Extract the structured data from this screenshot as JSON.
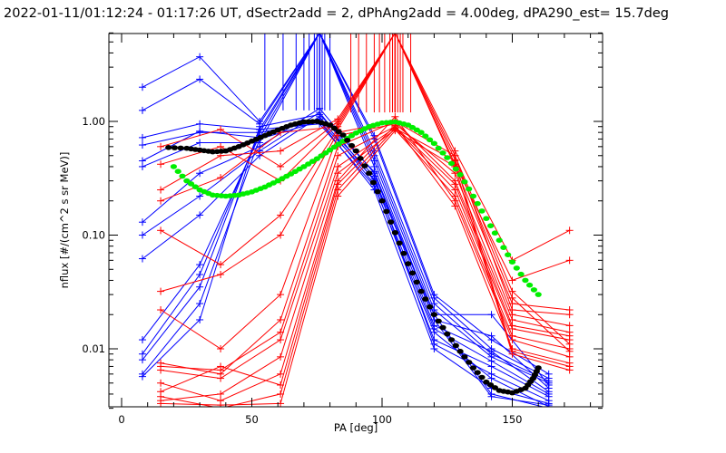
{
  "chart_data": {
    "type": "line",
    "title": "2022-01-11/01:12:24 - 01:17:26 UT, dSectr2add = 2, dPhAng2add = 4.00deg, dPA290_est=  15.7deg",
    "xlabel": "PA [deg]",
    "ylabel": "nflux [#/(cm^2 s sr MeV)]",
    "xlim": [
      -5,
      185
    ],
    "ylim": [
      0.003,
      6
    ],
    "yscale": "log",
    "x_ticks": [
      0,
      50,
      100,
      150
    ],
    "x_tick_labels": [
      "0",
      "50",
      "100",
      "150"
    ],
    "y_ticks": [
      0.01,
      0.1,
      1.0
    ],
    "y_tick_labels": [
      "0.01",
      "0.10",
      "1.00"
    ],
    "colors": {
      "blue": "#0000ff",
      "red": "#ff0000",
      "black": "#000000",
      "green": "#00ee00"
    },
    "blue_x": [
      8,
      30,
      53,
      76,
      97,
      120,
      142,
      164
    ],
    "red_x": [
      15,
      38,
      61,
      83,
      105,
      128,
      150,
      172
    ],
    "blue_series": [
      {
        "name": "blue-1",
        "values": [
          2.0,
          3.7,
          1.0,
          6.0,
          0.75,
          0.03,
          0.012,
          0.006
        ]
      },
      {
        "name": "blue-2",
        "values": [
          1.25,
          2.35,
          0.95,
          6.0,
          0.7,
          0.028,
          0.01,
          0.0055
        ]
      },
      {
        "name": "blue-3",
        "values": [
          0.72,
          0.95,
          0.85,
          6.0,
          0.55,
          0.025,
          0.009,
          0.0052
        ]
      },
      {
        "name": "blue-4",
        "values": [
          0.62,
          0.8,
          0.8,
          6.0,
          0.5,
          0.022,
          0.0085,
          0.005
        ]
      },
      {
        "name": "blue-5",
        "values": [
          0.45,
          0.82,
          0.72,
          6.0,
          0.45,
          0.02,
          0.02,
          0.0048
        ]
      },
      {
        "name": "blue-6",
        "values": [
          0.4,
          0.65,
          0.65,
          6.0,
          0.4,
          0.018,
          0.013,
          0.0045
        ]
      },
      {
        "name": "blue-7",
        "values": [
          0.13,
          0.35,
          0.6,
          1.3,
          0.35,
          0.016,
          0.0095,
          0.0042
        ]
      },
      {
        "name": "blue-8",
        "values": [
          0.1,
          0.22,
          0.55,
          1.2,
          0.3,
          0.015,
          0.0078,
          0.004
        ]
      },
      {
        "name": "blue-9",
        "values": [
          0.062,
          0.15,
          0.5,
          1.1,
          0.28,
          0.012,
          0.007,
          0.0038
        ]
      },
      {
        "name": "blue-10",
        "values": [
          0.012,
          0.055,
          0.75,
          1.05,
          0.33,
          0.011,
          0.006,
          0.0035
        ]
      },
      {
        "name": "blue-11",
        "values": [
          0.009,
          0.045,
          0.8,
          1.0,
          0.25,
          0.01,
          0.0045,
          0.0033
        ]
      },
      {
        "name": "blue-12",
        "values": [
          0.008,
          0.035,
          0.85,
          0.95,
          0.27,
          0.014,
          0.0055,
          0.0031
        ]
      },
      {
        "name": "blue-13",
        "values": [
          0.006,
          0.025,
          0.7,
          1.0,
          0.31,
          0.02,
          0.004,
          0.003
        ]
      },
      {
        "name": "blue-14",
        "values": [
          0.0057,
          0.018,
          0.9,
          1.15,
          0.36,
          0.018,
          0.0038,
          0.0032
        ]
      }
    ],
    "red_series": [
      {
        "name": "red-1",
        "values": [
          0.6,
          0.85,
          0.4,
          1.0,
          6.0,
          0.5,
          0.032,
          0.011
        ]
      },
      {
        "name": "red-2",
        "values": [
          0.42,
          0.6,
          0.3,
          0.95,
          6.0,
          0.46,
          0.028,
          0.0095
        ]
      },
      {
        "name": "red-3",
        "values": [
          0.25,
          0.5,
          0.55,
          1.05,
          6.0,
          0.55,
          0.06,
          0.11
        ]
      },
      {
        "name": "red-4",
        "values": [
          0.2,
          0.32,
          0.8,
          0.9,
          6.0,
          0.42,
          0.04,
          0.06
        ]
      },
      {
        "name": "red-5",
        "values": [
          0.11,
          0.055,
          0.15,
          0.85,
          6.0,
          0.4,
          0.025,
          0.022
        ]
      },
      {
        "name": "red-6",
        "values": [
          0.032,
          0.045,
          0.1,
          0.8,
          1.0,
          0.5,
          0.022,
          0.02
        ]
      },
      {
        "name": "red-7",
        "values": [
          0.022,
          0.01,
          0.03,
          0.75,
          0.95,
          0.35,
          0.02,
          0.016
        ]
      },
      {
        "name": "red-8",
        "values": [
          0.0075,
          0.006,
          0.018,
          0.6,
          1.0,
          0.3,
          0.018,
          0.014
        ]
      },
      {
        "name": "red-9",
        "values": [
          0.007,
          0.0065,
          0.014,
          0.5,
          0.9,
          0.28,
          0.016,
          0.013
        ]
      },
      {
        "name": "red-10",
        "values": [
          0.0065,
          0.0055,
          0.012,
          0.4,
          0.88,
          0.25,
          0.015,
          0.012
        ]
      },
      {
        "name": "red-11",
        "values": [
          0.0035,
          0.004,
          0.0085,
          0.35,
          0.85,
          0.22,
          0.013,
          0.01
        ]
      },
      {
        "name": "red-12",
        "values": [
          0.005,
          0.0035,
          0.006,
          0.3,
          1.1,
          0.2,
          0.012,
          0.0085
        ]
      },
      {
        "name": "red-13",
        "values": [
          0.0042,
          0.007,
          0.0048,
          0.28,
          0.92,
          0.18,
          0.01,
          0.0075
        ]
      },
      {
        "name": "red-14",
        "values": [
          0.0038,
          0.003,
          0.004,
          0.25,
          0.87,
          0.45,
          0.0095,
          0.007
        ]
      },
      {
        "name": "red-15",
        "values": [
          0.0033,
          0.0032,
          0.0033,
          0.22,
          0.83,
          0.4,
          0.009,
          0.0065
        ]
      }
    ],
    "fit_black": {
      "name": "black-fit",
      "x": [
        18,
        25,
        30,
        35,
        40,
        45,
        50,
        55,
        60,
        65,
        70,
        75,
        80,
        85,
        90,
        95,
        100,
        105,
        110,
        115,
        120,
        125,
        130,
        135,
        140,
        145,
        150,
        155,
        158,
        160
      ],
      "values": [
        0.59,
        0.58,
        0.56,
        0.54,
        0.55,
        0.6,
        0.67,
        0.75,
        0.84,
        0.93,
        0.99,
        1.0,
        0.93,
        0.76,
        0.55,
        0.35,
        0.2,
        0.105,
        0.056,
        0.032,
        0.02,
        0.0135,
        0.0095,
        0.0068,
        0.0051,
        0.0043,
        0.0041,
        0.0045,
        0.0055,
        0.0068
      ]
    },
    "fit_green": {
      "name": "green-fit",
      "x": [
        20,
        25,
        30,
        35,
        40,
        45,
        50,
        55,
        60,
        65,
        70,
        75,
        80,
        85,
        90,
        95,
        100,
        105,
        110,
        115,
        120,
        125,
        130,
        135,
        140,
        145,
        150,
        155,
        160
      ],
      "values": [
        0.4,
        0.3,
        0.25,
        0.225,
        0.22,
        0.225,
        0.24,
        0.265,
        0.3,
        0.345,
        0.4,
        0.47,
        0.56,
        0.67,
        0.79,
        0.9,
        0.97,
        0.99,
        0.93,
        0.8,
        0.64,
        0.48,
        0.34,
        0.22,
        0.14,
        0.09,
        0.058,
        0.04,
        0.03
      ]
    }
  }
}
